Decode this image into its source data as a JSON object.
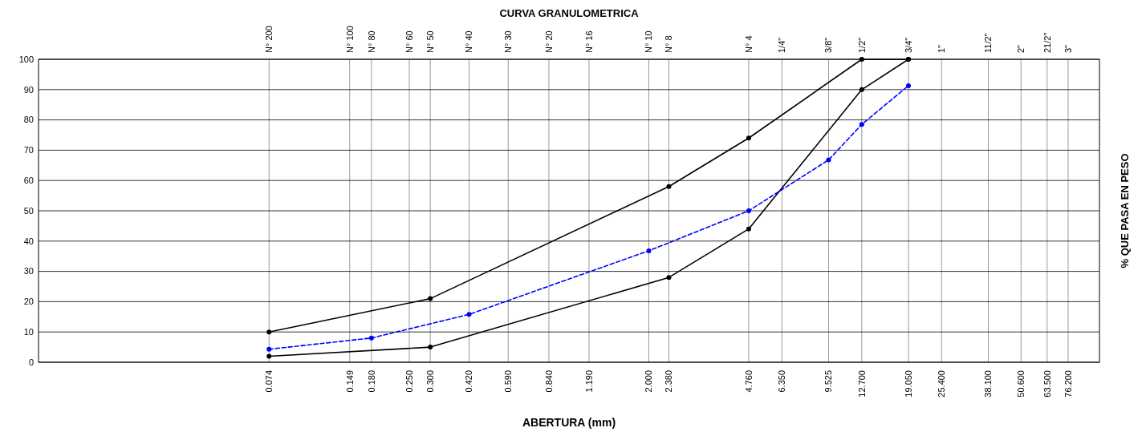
{
  "chart_data": {
    "type": "line",
    "title": "CURVA GRANULOMETRICA",
    "xlabel": "ABERTURA (mm)",
    "ylabel": "% QUE PASA EN PESO",
    "log": "x",
    "grid": true,
    "marker": "circle",
    "xlim": [
      0.01,
      100
    ],
    "ylim": [
      0,
      100
    ],
    "yticks": [
      0,
      10,
      20,
      30,
      40,
      50,
      60,
      70,
      80,
      90,
      100
    ],
    "xticks": [
      {
        "value": 0.074,
        "label": "0.074"
      },
      {
        "value": 0.149,
        "label": "0.149"
      },
      {
        "value": 0.18,
        "label": "0.180"
      },
      {
        "value": 0.25,
        "label": "0.250"
      },
      {
        "value": 0.3,
        "label": "0.300"
      },
      {
        "value": 0.42,
        "label": "0.420"
      },
      {
        "value": 0.59,
        "label": "0.590"
      },
      {
        "value": 0.84,
        "label": "0.840"
      },
      {
        "value": 1.19,
        "label": "1.190"
      },
      {
        "value": 2,
        "label": "2.000"
      },
      {
        "value": 2.38,
        "label": "2.380"
      },
      {
        "value": 4.76,
        "label": "4.760"
      },
      {
        "value": 6.35,
        "label": "6.350"
      },
      {
        "value": 9.525,
        "label": "9.525"
      },
      {
        "value": 12.7,
        "label": "12.700"
      },
      {
        "value": 19.05,
        "label": "19.050"
      },
      {
        "value": 25.4,
        "label": "25.400"
      },
      {
        "value": 38.1,
        "label": "38.100"
      },
      {
        "value": 50.6,
        "label": "50.600"
      },
      {
        "value": 63.5,
        "label": "63.500"
      },
      {
        "value": 76.2,
        "label": "76.200"
      }
    ],
    "annotations": [
      "N° 200",
      "N° 100",
      "N° 80",
      "N° 60",
      "N° 50",
      "N° 40",
      "N° 30",
      "N° 20",
      "N° 16",
      "N° 10",
      "N° 8",
      "N° 4",
      "1/4\"",
      "3/8\"",
      "1/2\"",
      "3/4\"",
      "1\"",
      "11/2\"",
      "2\"",
      "21/2\"",
      "3\""
    ],
    "series": [
      {
        "color": "#000000",
        "line_style": "solid",
        "x": [
          0.074,
          0.3,
          2.38,
          4.76,
          12.7,
          19.05
        ],
        "values": [
          10,
          21,
          58,
          74,
          100,
          100
        ]
      },
      {
        "color": "#000000",
        "line_style": "solid",
        "x": [
          0.074,
          0.3,
          2.38,
          4.76,
          12.7,
          19.05
        ],
        "values": [
          2,
          5,
          28,
          44,
          90,
          100
        ]
      },
      {
        "color": "#0000ff",
        "line_style": "dashed",
        "x": [
          0.074,
          0.18,
          0.42,
          2,
          4.76,
          9.525,
          12.7,
          19.05
        ],
        "values": [
          4.3,
          8,
          15.8,
          36.8,
          50,
          66.8,
          78.5,
          91.3
        ]
      }
    ]
  }
}
